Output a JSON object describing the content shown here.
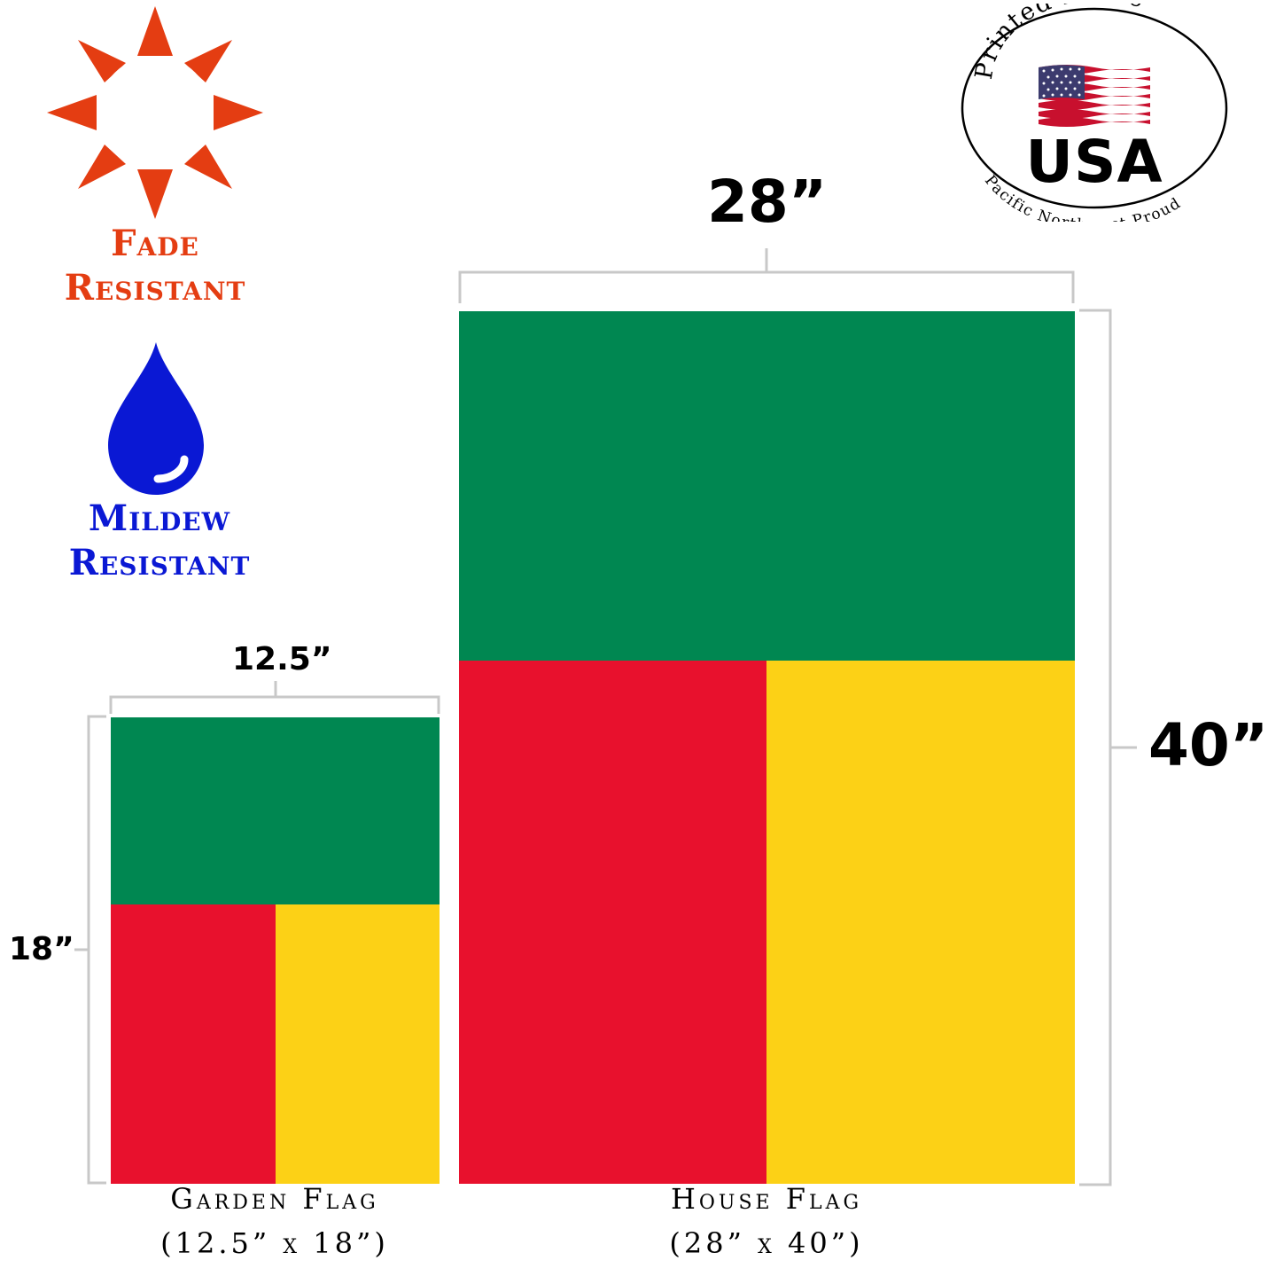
{
  "badges": {
    "fade": {
      "line1": "Fade",
      "line2": "Resistant",
      "icon": "sun-icon",
      "color": "#e43d12"
    },
    "mildew": {
      "line1": "Mildew",
      "line2": "Resistant",
      "icon": "water-drop-icon",
      "color": "#0a18d4"
    }
  },
  "seal": {
    "top_text": "Printed in the",
    "center_text": "USA",
    "bottom_text": "Pacific Northwest Proud",
    "icon": "us-flag-icon"
  },
  "house_flag": {
    "width_label": "28”",
    "height_label": "40”",
    "caption_line1": "House Flag",
    "caption_line2": "(28” x 40”)"
  },
  "garden_flag": {
    "width_label": "12.5”",
    "height_label": "18”",
    "caption_line1": "Garden Flag",
    "caption_line2": "(12.5” x 18”)"
  },
  "colors": {
    "green": "#008751",
    "red": "#e8112d",
    "yellow": "#fcd116",
    "bracket": "#c8c8c8"
  }
}
